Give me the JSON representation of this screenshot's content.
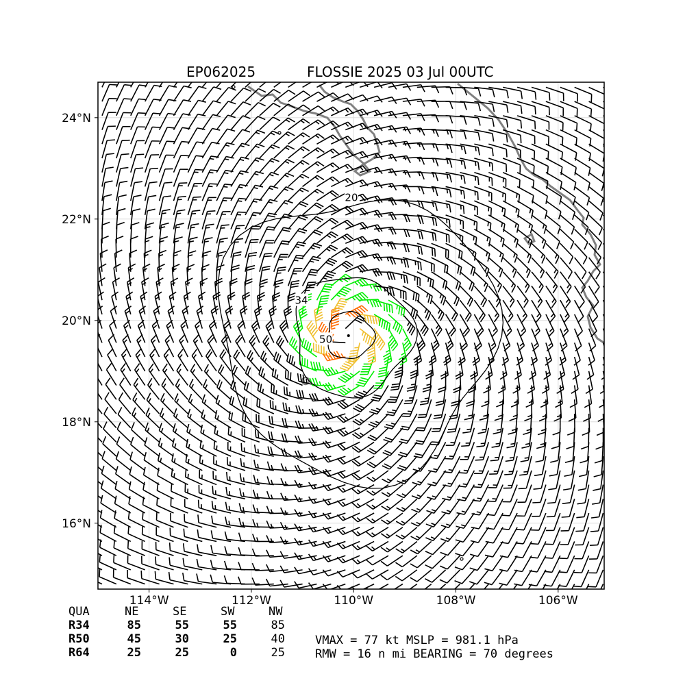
{
  "title": {
    "storm_id": "EP062025",
    "storm_label": "FLOSSIE 2025 03 Jul 00UTC"
  },
  "axes": {
    "lon_range": [
      -115.0,
      -105.1
    ],
    "lat_range": [
      14.7,
      24.7
    ],
    "lon_ticks": [
      {
        "value": -114,
        "label": "114°W"
      },
      {
        "value": -112,
        "label": "112°W"
      },
      {
        "value": -110,
        "label": "110°W"
      },
      {
        "value": -108,
        "label": "108°W"
      },
      {
        "value": -106,
        "label": "106°W"
      }
    ],
    "lat_ticks": [
      {
        "value": 24,
        "label": "24°N"
      },
      {
        "value": 22,
        "label": "22°N"
      },
      {
        "value": 20,
        "label": "20°N"
      },
      {
        "value": 18,
        "label": "18°N"
      },
      {
        "value": 16,
        "label": "16°N"
      }
    ],
    "grid": true
  },
  "storm": {
    "center_lon": -110.1,
    "center_lat": 19.7,
    "vmax_kt": 77,
    "mslp_hpa": 981.1,
    "rmw_nmi": 16,
    "bearing_deg": 70
  },
  "contours": [
    {
      "label": "20",
      "radius_deg": 2.7
    },
    {
      "label": "34",
      "radius_deg": 1.15
    },
    {
      "label": "50",
      "radius_deg": 0.45
    }
  ],
  "wind_colors": {
    "below_34": "#000000",
    "r34_to_50": "#00ee00",
    "r50_to_64": "#f0c030",
    "above_64": "#ff6a00",
    "coastline": "#808080"
  },
  "quadrant_table": {
    "headers": [
      "QUA",
      "NE",
      "SE",
      "SW",
      "NW"
    ],
    "rows": [
      {
        "label": "R34",
        "values": [
          "85",
          "55",
          "55",
          "85"
        ]
      },
      {
        "label": "R50",
        "values": [
          "45",
          "30",
          "25",
          "40"
        ]
      },
      {
        "label": "R64",
        "values": [
          "25",
          "25",
          "0",
          "25"
        ]
      }
    ]
  },
  "summary": {
    "line1": "VMAX =  77 kt MSLP = 981.1 hPa",
    "line2": "RMW =  16 n mi BEARING =  70 degrees"
  }
}
